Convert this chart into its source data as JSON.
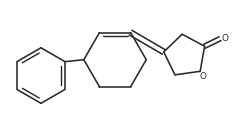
{
  "background": "#ffffff",
  "line_color": "#2a2a2a",
  "line_width": 1.15,
  "figsize": [
    2.38,
    1.22
  ],
  "dpi": 100
}
